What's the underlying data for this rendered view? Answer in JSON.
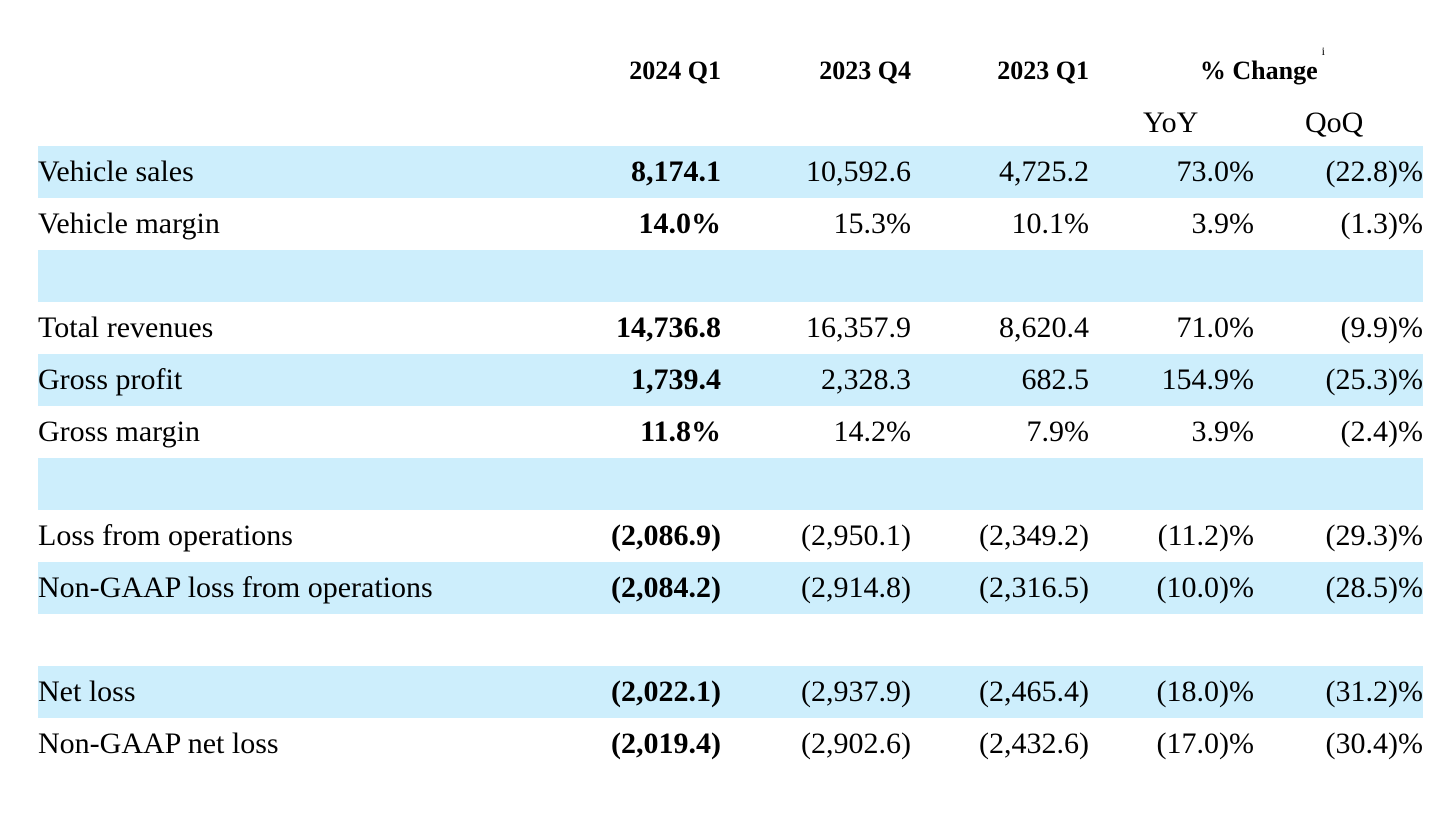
{
  "colors": {
    "row_shade": "#cdeefc",
    "text": "#000000"
  },
  "header": {
    "col_2024_q1": "2024 Q1",
    "col_2023_q4": "2023 Q4",
    "col_2023_q1": "2023 Q1",
    "pct_change": "% Change",
    "pct_change_note": "i",
    "yoy": "YoY",
    "qoq": "QoQ"
  },
  "rows": [
    {
      "label": "Vehicle sales",
      "q1_2024": "8,174.1",
      "q4_2023": "10,592.6",
      "q1_2023": "4,725.2",
      "yoy": "73.0%",
      "qoq": "(22.8)%"
    },
    {
      "label": "Vehicle margin",
      "q1_2024": "14.0%",
      "q4_2023": "15.3%",
      "q1_2023": "10.1%",
      "yoy": "3.9%",
      "qoq": "(1.3)%"
    },
    {
      "label": "Total revenues",
      "q1_2024": "14,736.8",
      "q4_2023": "16,357.9",
      "q1_2023": "8,620.4",
      "yoy": "71.0%",
      "qoq": "(9.9)%"
    },
    {
      "label": "Gross profit",
      "q1_2024": "1,739.4",
      "q4_2023": "2,328.3",
      "q1_2023": "682.5",
      "yoy": "154.9%",
      "qoq": "(25.3)%"
    },
    {
      "label": "Gross margin",
      "q1_2024": "11.8%",
      "q4_2023": "14.2%",
      "q1_2023": "7.9%",
      "yoy": "3.9%",
      "qoq": "(2.4)%"
    },
    {
      "label": "Loss from operations",
      "q1_2024": "(2,086.9)",
      "q4_2023": "(2,950.1)",
      "q1_2023": "(2,349.2)",
      "yoy": "(11.2)%",
      "qoq": "(29.3)%"
    },
    {
      "label": "Non-GAAP loss from operations",
      "q1_2024": "(2,084.2)",
      "q4_2023": "(2,914.8)",
      "q1_2023": "(2,316.5)",
      "yoy": "(10.0)%",
      "qoq": "(28.5)%"
    },
    {
      "label": "Net loss",
      "q1_2024": "(2,022.1)",
      "q4_2023": "(2,937.9)",
      "q1_2023": "(2,465.4)",
      "yoy": "(18.0)%",
      "qoq": "(31.2)%"
    },
    {
      "label": "Non-GAAP net loss",
      "q1_2024": "(2,019.4)",
      "q4_2023": "(2,902.6)",
      "q1_2023": "(2,432.6)",
      "yoy": "(17.0)%",
      "qoq": "(30.4)%"
    }
  ]
}
